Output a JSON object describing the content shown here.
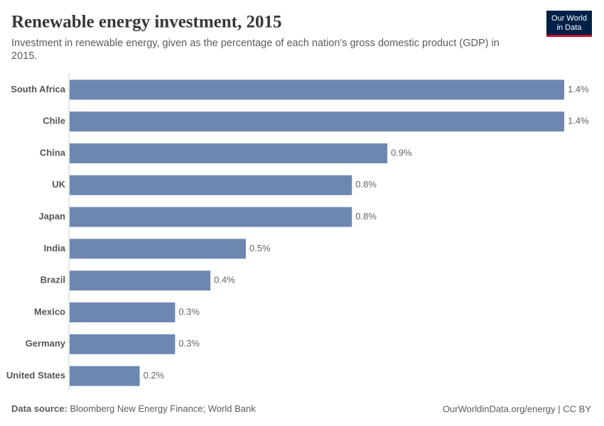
{
  "chart_data": {
    "type": "bar",
    "orientation": "horizontal",
    "title": "Renewable energy investment, 2015",
    "subtitle": "Investment in renewable energy, given as the percentage of each nation's gross domestic product (GDP) in 2015.",
    "categories": [
      "South Africa",
      "Chile",
      "China",
      "UK",
      "Japan",
      "India",
      "Brazil",
      "Mexico",
      "Germany",
      "United States"
    ],
    "values": [
      1.4,
      1.4,
      0.9,
      0.8,
      0.8,
      0.5,
      0.4,
      0.3,
      0.3,
      0.2
    ],
    "value_labels": [
      "1.4%",
      "1.4%",
      "0.9%",
      "0.8%",
      "0.8%",
      "0.5%",
      "0.4%",
      "0.3%",
      "0.3%",
      "0.2%"
    ],
    "color": "#6d87b1",
    "source_label": "Data source:",
    "source": "Bloomberg New Energy Finance; World Bank",
    "footer_right": "OurWorldinData.org/energy | CC BY",
    "logo": [
      "Our World",
      "in Data"
    ]
  }
}
